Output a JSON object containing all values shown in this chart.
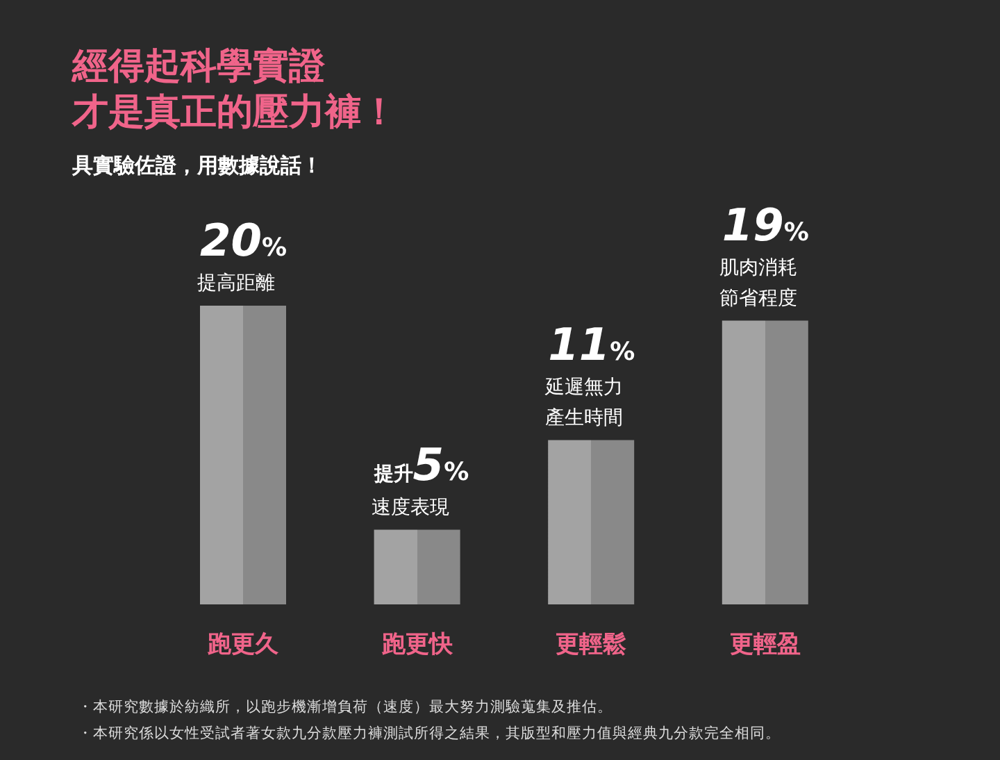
{
  "chart_data": {
    "type": "bar",
    "title": "經得起科學實證才是真正的壓力褲！",
    "subtitle": "具實驗佐證，用數據說話！",
    "categories": [
      "跑更久",
      "跑更快",
      "更輕鬆",
      "更輕盈"
    ],
    "values": [
      20,
      5,
      11,
      19
    ],
    "value_labels": [
      "20%",
      "提升5%",
      "11%",
      "19%"
    ],
    "color": "#a3a3a3",
    "annotations": [
      {
        "text": "提高距離",
        "x": "跑更久",
        "y": 20
      },
      {
        "text": "速度表現",
        "x": "跑更快",
        "y": 5
      },
      {
        "text": "延遲無力產生時間",
        "x": "更輕鬆",
        "y": 11
      },
      {
        "text": "肌肉消耗節省程度",
        "x": "更輕盈",
        "y": 19
      },
      "・本研究數據於紡織所，以跑步機漸增負荷（速度）最大努力測驗蒐集及推估。",
      "・本研究係以女性受試者著女款九分款壓力褲測試所得之結果，其版型和壓力值與經典九分款完全相同。"
    ]
  }
}
